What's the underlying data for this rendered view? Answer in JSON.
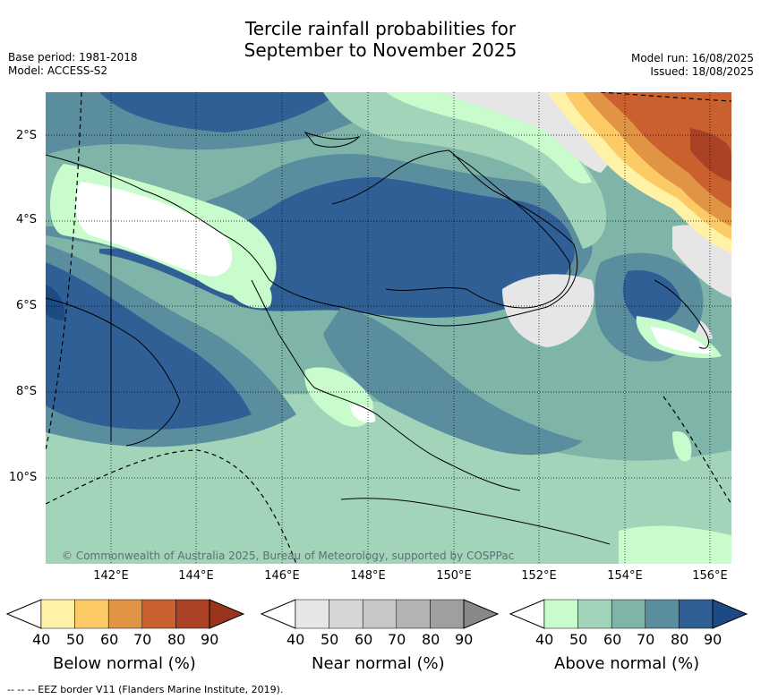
{
  "title_line1": "Tercile rainfall probabilities for",
  "title_line2": "September to November 2025",
  "meta_left": {
    "line1": "Base period: 1981-2018",
    "line2": "Model: ACCESS-S2"
  },
  "meta_right": {
    "line1": "Model run: 16/08/2025",
    "line2": "Issued: 18/08/2025"
  },
  "lat_labels": [
    "2°S",
    "4°S",
    "6°S",
    "8°S",
    "10°S"
  ],
  "lon_labels": [
    "142°E",
    "144°E",
    "146°E",
    "148°E",
    "150°E",
    "152°E",
    "154°E",
    "156°E"
  ],
  "copyright": "© Commonwealth of Australia 2025, Bureau of Meteorology, supported by COSPPac",
  "colorbars": [
    {
      "title": "Below normal (%)",
      "ticks": [
        "40",
        "50",
        "60",
        "70",
        "80",
        "90"
      ],
      "colors": [
        "#fff1a6",
        "#fdcb66",
        "#e19444",
        "#c9602e",
        "#ab4225",
        "#98351c"
      ]
    },
    {
      "title": "Near normal (%)",
      "ticks": [
        "40",
        "50",
        "60",
        "70",
        "80",
        "90"
      ],
      "colors": [
        "#e6e6e6",
        "#d6d6d6",
        "#c7c7c7",
        "#b3b3b3",
        "#9f9f9f",
        "#888888"
      ]
    },
    {
      "title": "Above normal (%)",
      "ticks": [
        "40",
        "50",
        "60",
        "70",
        "80",
        "90"
      ],
      "colors": [
        "#c9fccc",
        "#a2d4ba",
        "#7fb4a9",
        "#5a8d9e",
        "#305f96",
        "#1c4b84"
      ]
    }
  ],
  "footnote": "--  --  -- EEZ border V11 (Flanders Marine Institute, 2019).",
  "icons": [
    "contour-map",
    "coastline",
    "eez-border"
  ]
}
